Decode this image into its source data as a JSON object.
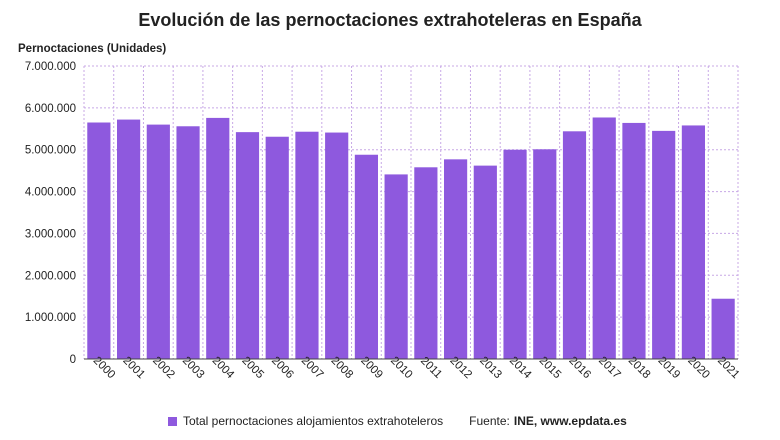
{
  "chart_data": {
    "type": "bar",
    "title": "Evolución de las pernoctaciones extrahoteleras en España",
    "ylabel": "Pernoctaciones (Unidades)",
    "xlabel": "",
    "categories": [
      "2000",
      "2001",
      "2002",
      "2003",
      "2004",
      "2005",
      "2006",
      "2007",
      "2008",
      "2009",
      "2010",
      "2011",
      "2012",
      "2013",
      "2014",
      "2015",
      "2016",
      "2017",
      "2018",
      "2019",
      "2020",
      "2021"
    ],
    "series": [
      {
        "name": "Total pernoctaciones alojamientos extrahoteleros",
        "values": [
          5650000,
          5720000,
          5600000,
          5560000,
          5760000,
          5420000,
          5310000,
          5430000,
          5410000,
          4880000,
          4410000,
          4580000,
          4770000,
          4620000,
          5000000,
          5010000,
          5440000,
          5770000,
          5640000,
          5450000,
          5580000,
          1440000
        ]
      }
    ],
    "ylim": [
      0,
      7000000
    ],
    "yticks": [
      0,
      1000000,
      2000000,
      3000000,
      4000000,
      5000000,
      6000000,
      7000000
    ],
    "ytick_labels": [
      "0",
      "1.000.000",
      "2.000.000",
      "3.000.000",
      "4.000.000",
      "5.000.000",
      "6.000.000",
      "7.000.000"
    ],
    "grid": true,
    "legend_position": "bottom",
    "bar_color": "#8e59de",
    "grid_color": "#c8a8e6"
  },
  "source": {
    "label": "Fuente:",
    "value": "INE, www.epdata.es"
  }
}
